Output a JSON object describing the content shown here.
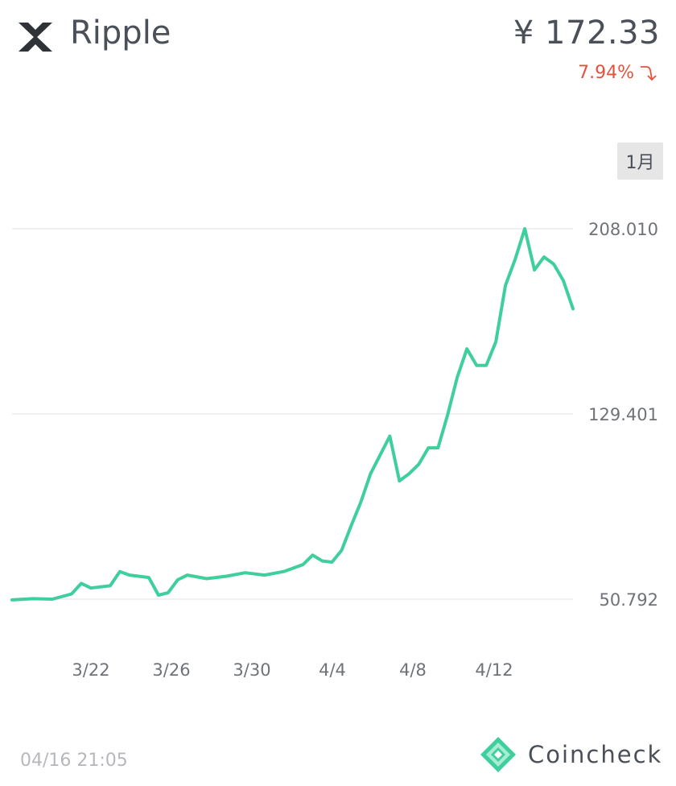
{
  "header": {
    "logo_icon": "xrp-x-icon",
    "coin_name": "Ripple",
    "price": "¥ 172.33",
    "change_percent": "7.94%",
    "change_direction_icon": "down-arrow-icon",
    "change_color": "#e2533f"
  },
  "period_button": {
    "label": "1月"
  },
  "chart_data": {
    "type": "line",
    "title": "",
    "xlabel": "",
    "ylabel": "",
    "y_ticks": [
      "208.010",
      "129.401",
      "50.792"
    ],
    "x_ticks": [
      "3/22",
      "3/26",
      "3/30",
      "4/4",
      "4/8",
      "4/12"
    ],
    "series": [
      {
        "color": "#3ecf9c",
        "points": [
          [
            "3/18",
            50.5
          ],
          [
            "3/19",
            51.0
          ],
          [
            "3/20",
            50.8
          ],
          [
            "3/21",
            53.0
          ],
          [
            "3/21 12h",
            57.5
          ],
          [
            "3/22",
            55.5
          ],
          [
            "3/23",
            56.5
          ],
          [
            "3/23 12h",
            62.5
          ],
          [
            "3/24",
            61.0
          ],
          [
            "3/25",
            60.0
          ],
          [
            "3/25 12h",
            52.5
          ],
          [
            "3/26",
            53.5
          ],
          [
            "3/26 12h",
            59.0
          ],
          [
            "3/27",
            61.0
          ],
          [
            "3/28",
            59.5
          ],
          [
            "3/29",
            60.5
          ],
          [
            "3/30",
            62.0
          ],
          [
            "3/31",
            61.0
          ],
          [
            "4/1",
            62.5
          ],
          [
            "4/2",
            65.5
          ],
          [
            "4/2 12h",
            69.5
          ],
          [
            "4/3",
            67.0
          ],
          [
            "4/3 12h",
            66.5
          ],
          [
            "4/4",
            71.5
          ],
          [
            "4/4 12h",
            82.0
          ],
          [
            "4/5",
            92.0
          ],
          [
            "4/5 12h",
            104.0
          ],
          [
            "4/6",
            112.0
          ],
          [
            "4/6 12h",
            120.0
          ],
          [
            "4/7",
            101.0
          ],
          [
            "4/7 12h",
            104.0
          ],
          [
            "4/8",
            108.0
          ],
          [
            "4/8 12h",
            115.0
          ],
          [
            "4/9",
            115.0
          ],
          [
            "4/9 12h",
            129.0
          ],
          [
            "4/10",
            145.0
          ],
          [
            "4/10 12h",
            157.0
          ],
          [
            "4/11",
            150.0
          ],
          [
            "4/11 12h",
            150.0
          ],
          [
            "4/12",
            160.0
          ],
          [
            "4/12 12h",
            184.0
          ],
          [
            "4/13",
            195.0
          ],
          [
            "4/13 12h",
            208.0
          ],
          [
            "4/14",
            190.5
          ],
          [
            "4/14 12h",
            196.0
          ],
          [
            "4/15",
            193.0
          ],
          [
            "4/15 12h",
            186.0
          ],
          [
            "4/16",
            174.0
          ]
        ]
      }
    ],
    "grid": true,
    "ylim": [
      50.792,
      208.01
    ]
  },
  "footer": {
    "timestamp": "04/16 21:05",
    "brand_icon": "coincheck-diamond-icon",
    "brand_name": "Coincheck"
  }
}
